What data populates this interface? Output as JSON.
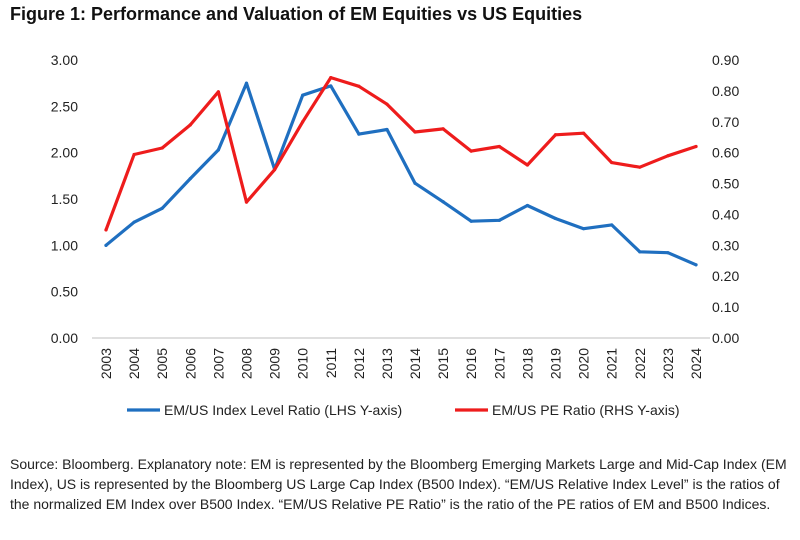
{
  "figure": {
    "title": "Figure 1: Performance and Valuation of EM Equities vs US Equities",
    "footnote": "Source: Bloomberg. Explanatory note: EM is represented by the Bloomberg Emerging Markets Large and Mid-Cap Index (EM Index), US is represented by the Bloomberg US Large Cap Index (B500 Index). “EM/US Relative Index Level” is the ratios of the normalized EM Index over B500 Index. “EM/US Relative PE Ratio” is the ratio of the PE ratios of EM and B500 Indices."
  },
  "chart_data": {
    "type": "line",
    "title": "Figure 1: Performance and Valuation of EM Equities vs US Equities",
    "x": [
      "2003",
      "2004",
      "2005",
      "2006",
      "2007",
      "2008",
      "2009",
      "2010",
      "2011",
      "2012",
      "2013",
      "2014",
      "2015",
      "2016",
      "2017",
      "2018",
      "2019",
      "2020",
      "2021",
      "2022",
      "2023",
      "2024"
    ],
    "y_left": {
      "ylim": [
        0,
        3.0
      ],
      "ticks": [
        "0.00",
        "0.50",
        "1.00",
        "1.50",
        "2.00",
        "2.50",
        "3.00"
      ],
      "tick_values": [
        0,
        0.5,
        1.0,
        1.5,
        2.0,
        2.5,
        3.0
      ]
    },
    "y_right": {
      "ylim": [
        0,
        0.9
      ],
      "ticks": [
        "0.00",
        "0.10",
        "0.20",
        "0.30",
        "0.40",
        "0.50",
        "0.60",
        "0.70",
        "0.80",
        "0.90"
      ],
      "tick_values": [
        0,
        0.1,
        0.2,
        0.3,
        0.4,
        0.5,
        0.6,
        0.7,
        0.8,
        0.9
      ]
    },
    "series": [
      {
        "name": "EM/US Index Level Ratio (LHS Y-axis)",
        "axis": "left",
        "color": "#1f6fc0",
        "values": [
          1.0,
          1.25,
          1.4,
          1.72,
          2.03,
          2.75,
          1.82,
          2.62,
          2.72,
          2.2,
          2.25,
          1.67,
          1.47,
          1.26,
          1.27,
          1.43,
          1.29,
          1.18,
          1.22,
          0.93,
          0.92,
          0.79
        ]
      },
      {
        "name": "EM/US PE Ratio (RHS Y-axis)",
        "axis": "right",
        "color": "#ee1c1c",
        "values": [
          0.35,
          0.594,
          0.615,
          0.69,
          0.797,
          0.44,
          0.545,
          0.7,
          0.843,
          0.815,
          0.757,
          0.667,
          0.677,
          0.605,
          0.62,
          0.56,
          0.658,
          0.663,
          0.568,
          0.553,
          0.59,
          0.62
        ]
      }
    ],
    "legend": "bottom",
    "grid": false
  }
}
